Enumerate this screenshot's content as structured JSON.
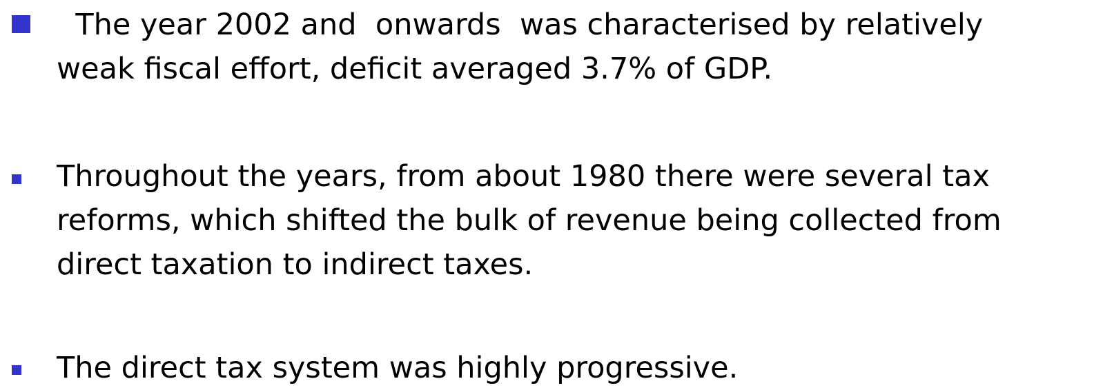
{
  "bullets": [
    {
      "lines": [
        "  The year 2002 and  onwards  was characterised by relatively",
        "weak fiscal effort, deficit averaged 3.7% of GDP."
      ]
    },
    {
      "lines": [
        "Throughout the years, from about 1980 there were several tax",
        "reforms, which shifted the bulk of revenue being collected from",
        "direct taxation to indirect taxes."
      ]
    },
    {
      "lines": [
        "The direct tax system was highly progressive."
      ]
    }
  ]
}
